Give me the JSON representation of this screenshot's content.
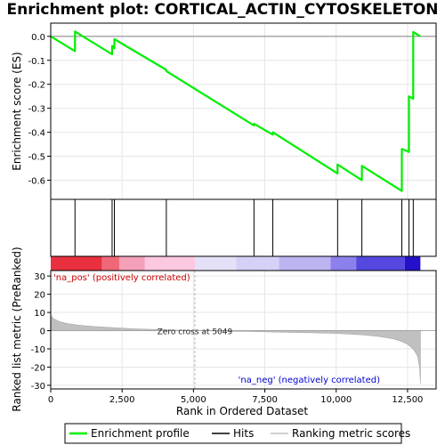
{
  "chart_data": {
    "type": "line",
    "title": "Enrichment plot: CORTICAL_ACTIN_CYTOSKELETON",
    "xlabel": "Rank in Ordered Dataset",
    "ylabel_top": "Enrichment score (ES)",
    "ylabel_bottom": "Ranked list metric (PreRanked)",
    "x_ticks": [
      "0",
      "2,500",
      "5,000",
      "7,500",
      "10,000",
      "12,500"
    ],
    "x_tick_values": [
      0,
      2500,
      5000,
      7500,
      10000,
      12500
    ],
    "es_y_ticks": [
      "0.0",
      "-0.1",
      "-0.2",
      "-0.3",
      "-0.4",
      "-0.5",
      "-0.6"
    ],
    "es_y_tick_values": [
      0.0,
      -0.1,
      -0.2,
      -0.3,
      -0.4,
      -0.5,
      -0.6
    ],
    "metric_y_ticks": [
      "30",
      "20",
      "10",
      "0",
      "-10",
      "-20",
      "-30"
    ],
    "metric_y_tick_values": [
      30,
      20,
      10,
      0,
      -10,
      -20,
      -30
    ],
    "xlim": [
      0,
      13500
    ],
    "es_ylim": [
      -0.68,
      0.055
    ],
    "metric_ylim": [
      -32,
      33
    ],
    "n_genes": 12950,
    "zero_cross": 5049,
    "zero_cross_label": "Zero cross at 5049",
    "pos_label": "'na_pos' (positively correlated)",
    "neg_label": "'na_neg' (negatively correlated)",
    "hits": [
      850,
      2150,
      2230,
      4050,
      7120,
      7780,
      10050,
      10900,
      12300,
      12550,
      12700
    ],
    "es_points": [
      [
        0,
        0.0
      ],
      [
        849,
        -0.062
      ],
      [
        850,
        0.02
      ],
      [
        2149,
        -0.075
      ],
      [
        2150,
        -0.04
      ],
      [
        2229,
        -0.05
      ],
      [
        2230,
        -0.012
      ],
      [
        4049,
        -0.14
      ],
      [
        4050,
        -0.145
      ],
      [
        7119,
        -0.372
      ],
      [
        7120,
        -0.365
      ],
      [
        7779,
        -0.41
      ],
      [
        7780,
        -0.4
      ],
      [
        10049,
        -0.572
      ],
      [
        10050,
        -0.535
      ],
      [
        10899,
        -0.6
      ],
      [
        10900,
        -0.54
      ],
      [
        12299,
        -0.645
      ],
      [
        12300,
        -0.47
      ],
      [
        12549,
        -0.482
      ],
      [
        12550,
        -0.25
      ],
      [
        12699,
        -0.26
      ],
      [
        12700,
        0.018
      ],
      [
        12950,
        0.0
      ]
    ],
    "metric_profile": [
      [
        0,
        8.5
      ],
      [
        100,
        6.5
      ],
      [
        300,
        5.0
      ],
      [
        600,
        3.8
      ],
      [
        1000,
        3.0
      ],
      [
        1500,
        2.3
      ],
      [
        2000,
        1.8
      ],
      [
        2500,
        1.4
      ],
      [
        3000,
        1.0
      ],
      [
        3500,
        0.7
      ],
      [
        4000,
        0.45
      ],
      [
        4500,
        0.2
      ],
      [
        5049,
        0.0
      ],
      [
        6000,
        -0.3
      ],
      [
        7000,
        -0.5
      ],
      [
        8000,
        -0.8
      ],
      [
        9000,
        -1.1
      ],
      [
        10000,
        -1.5
      ],
      [
        10500,
        -1.9
      ],
      [
        11000,
        -2.4
      ],
      [
        11500,
        -3.2
      ],
      [
        12000,
        -4.5
      ],
      [
        12300,
        -6.0
      ],
      [
        12500,
        -7.5
      ],
      [
        12700,
        -10.0
      ],
      [
        12850,
        -14.0
      ],
      [
        12920,
        -20.0
      ],
      [
        12950,
        -29.0
      ]
    ],
    "band_segments": [
      {
        "from": 0,
        "to": 1800,
        "color": "#e8303e"
      },
      {
        "from": 1800,
        "to": 2400,
        "color": "#f06878"
      },
      {
        "from": 2400,
        "to": 3300,
        "color": "#f4a0b8"
      },
      {
        "from": 3300,
        "to": 5049,
        "color": "#fcc8e0"
      },
      {
        "from": 5049,
        "to": 6500,
        "color": "#e4e0f8"
      },
      {
        "from": 6500,
        "to": 8000,
        "color": "#d4d0f6"
      },
      {
        "from": 8000,
        "to": 9800,
        "color": "#bcb4f0"
      },
      {
        "from": 9800,
        "to": 10700,
        "color": "#8c80ec"
      },
      {
        "from": 10700,
        "to": 12400,
        "color": "#5448e0"
      },
      {
        "from": 12400,
        "to": 12950,
        "color": "#2410c8"
      }
    ],
    "legend": [
      "Enrichment profile",
      "Hits",
      "Ranking metric scores"
    ],
    "colors": {
      "es_line": "#00ee00",
      "hits": "#000000",
      "metric_fill": "#c0c0c0",
      "zero_line": "#c0c0c0",
      "pos_text": "#cc0000",
      "neg_text": "#0000cc"
    }
  }
}
